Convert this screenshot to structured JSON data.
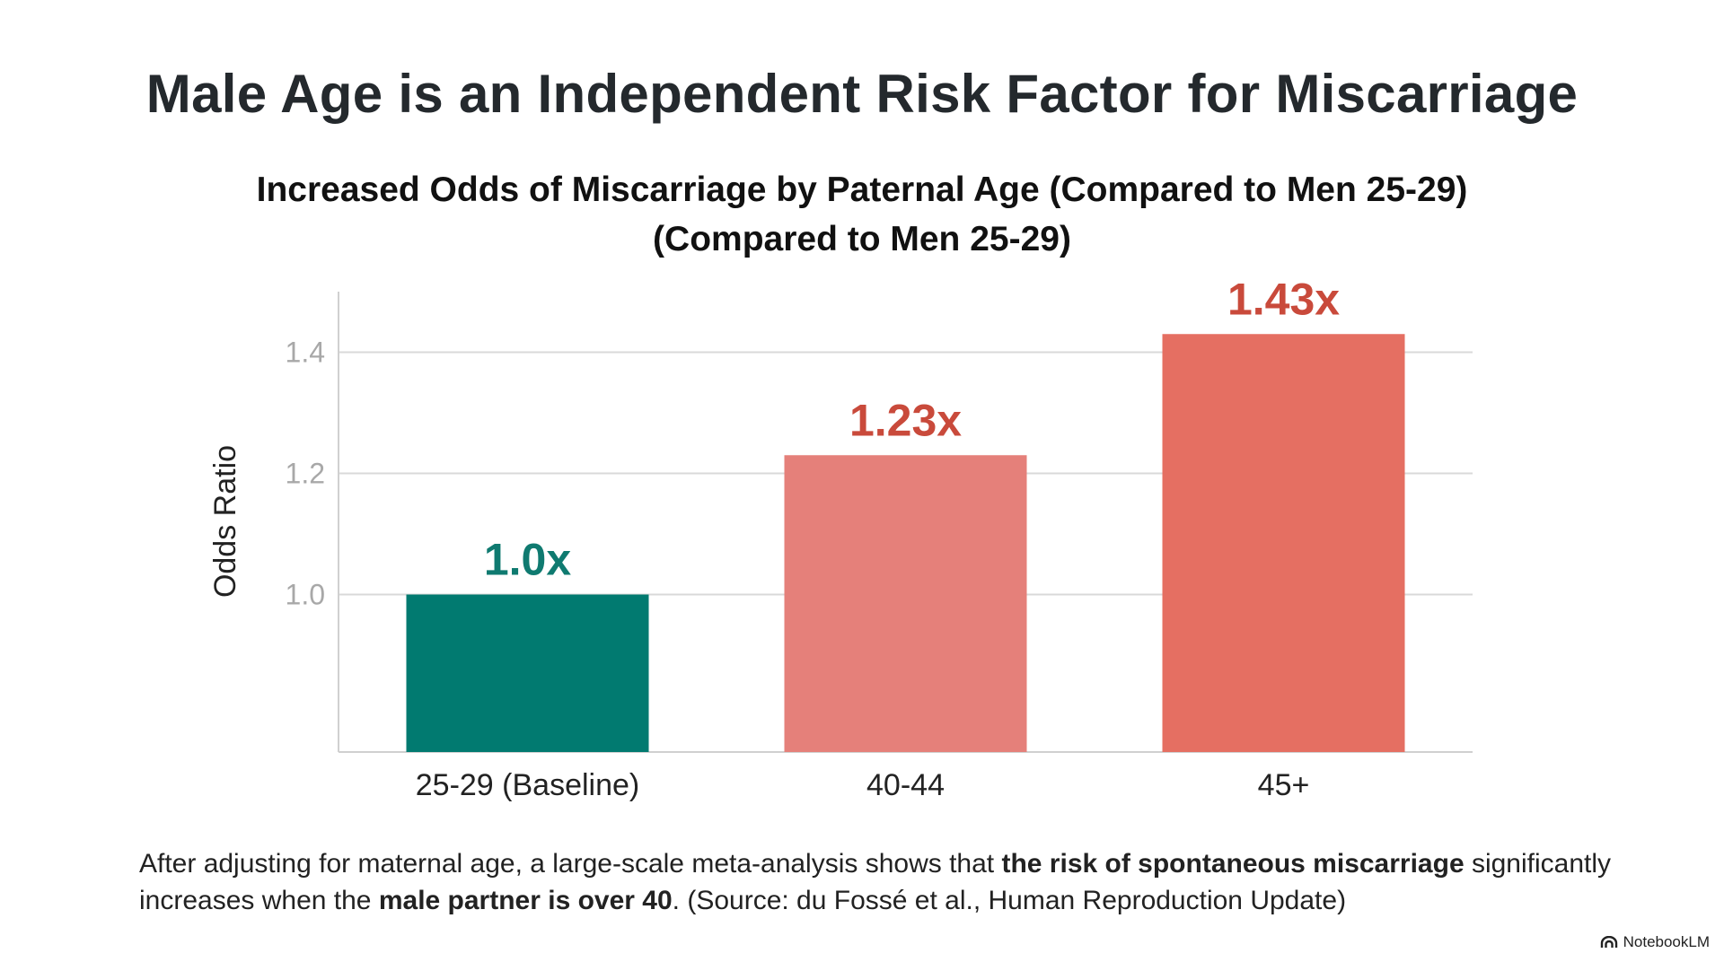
{
  "title": "Male Age is an Independent Risk Factor for Miscarriage",
  "chart_data": {
    "type": "bar",
    "title": "Increased Odds of Miscarriage by Paternal Age (Compared to Men 25-29)",
    "subtitle": "(Compared to Men 25-29)",
    "categories": [
      "25-29 (Baseline)",
      "40-44",
      "45+"
    ],
    "values": [
      1.0,
      1.23,
      1.43
    ],
    "value_labels": [
      "1.0x",
      "1.23x",
      "1.43x"
    ],
    "bar_colors": [
      "#017a70",
      "#e5807a",
      "#e56f62"
    ],
    "label_colors": [
      "#0f7a70",
      "#c94a3b",
      "#c94a3b"
    ],
    "xlabel": "",
    "ylabel": "Odds Ratio",
    "yticks": [
      1.0,
      1.2,
      1.4
    ],
    "ytick_labels": [
      "1.0",
      "1.2",
      "1.4"
    ],
    "ylim": [
      0.74,
      1.5
    ],
    "grid": true,
    "legend": "none"
  },
  "caption": {
    "part1": "After adjusting for maternal age, a large-scale meta-analysis shows that ",
    "bold1": "the risk of spontaneous miscarriage",
    "part2": " significantly increases when the ",
    "bold2": "male partner is over 40",
    "part3": ". (Source: du Fossé et al., Human Reproduction Update)"
  },
  "brand": "NotebookLM"
}
